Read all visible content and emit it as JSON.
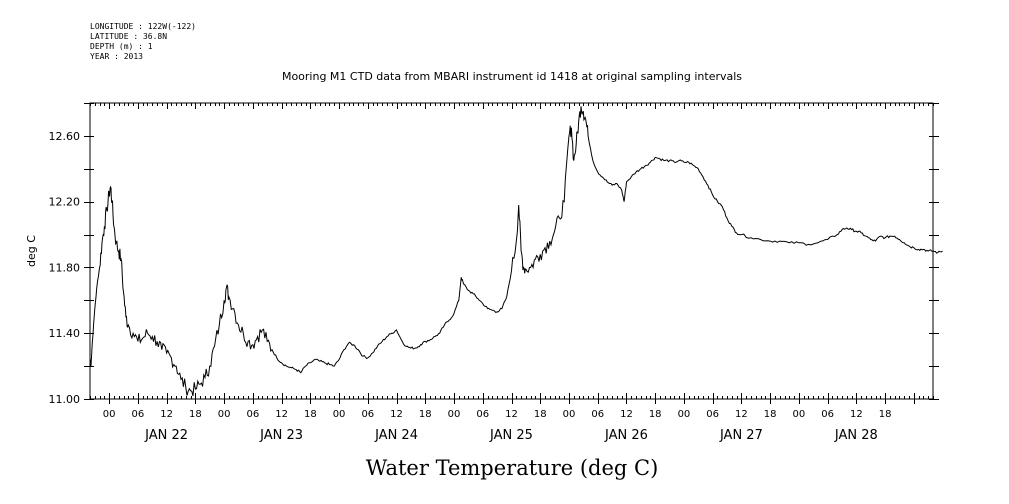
{
  "header": {
    "lines": [
      "LONGITUDE : 122W(-122)",
      "LATITUDE : 36.8N",
      "DEPTH (m) : 1",
      "YEAR : 2013"
    ]
  },
  "chart_data": {
    "type": "line",
    "title": "Mooring M1 CTD data from MBARI instrument id 1418 at original sampling intervals",
    "xlabel": "Water Temperature (deg C)",
    "ylabel": "deg C",
    "ylim": [
      11.0,
      12.8
    ],
    "yticks": [
      "11.00",
      "11.40",
      "11.80",
      "12.20",
      "12.60"
    ],
    "xlim_hours_from_jan22_00": [
      -4,
      20
    ],
    "hour_tick_labels": [
      "00",
      "06",
      "12",
      "18",
      "00",
      "06",
      "12",
      "18",
      "00",
      "06",
      "12",
      "18",
      "00",
      "06",
      "12",
      "18",
      "00",
      "06",
      "12",
      "18",
      "00",
      "06",
      "12",
      "18",
      "00",
      "06",
      "12",
      "18"
    ],
    "day_labels": [
      "JAN 22",
      "JAN 23",
      "JAN 24",
      "JAN 25",
      "JAN 26",
      "JAN 27",
      "JAN 28"
    ],
    "grid": false,
    "series": [
      {
        "values_note": "x = hours relative to JAN 22 00:00, y = deg C",
        "points": [
          [
            -4,
            11.25
          ],
          [
            -3.8,
            11.2
          ],
          [
            -3.5,
            11.35
          ],
          [
            -3,
            11.55
          ],
          [
            -2.5,
            11.7
          ],
          [
            -2,
            11.8
          ],
          [
            -1.5,
            11.95
          ],
          [
            -1,
            12.05
          ],
          [
            -0.5,
            12.15
          ],
          [
            0,
            12.25
          ],
          [
            0.3,
            12.29
          ],
          [
            0.6,
            12.2
          ],
          [
            1,
            12.05
          ],
          [
            1.5,
            11.95
          ],
          [
            2,
            11.9
          ],
          [
            2.5,
            11.85
          ],
          [
            3,
            11.65
          ],
          [
            3.5,
            11.5
          ],
          [
            4,
            11.45
          ],
          [
            5,
            11.4
          ],
          [
            6,
            11.35
          ],
          [
            7,
            11.37
          ],
          [
            8,
            11.4
          ],
          [
            9,
            11.38
          ],
          [
            10,
            11.35
          ],
          [
            11,
            11.3
          ],
          [
            12,
            11.28
          ],
          [
            13,
            11.25
          ],
          [
            14,
            11.2
          ],
          [
            15,
            11.12
          ],
          [
            16,
            11.07
          ],
          [
            17,
            11.05
          ],
          [
            18,
            11.06
          ],
          [
            19,
            11.09
          ],
          [
            20,
            11.13
          ],
          [
            21,
            11.2
          ],
          [
            22,
            11.32
          ],
          [
            23,
            11.45
          ],
          [
            24,
            11.6
          ],
          [
            24.5,
            11.68
          ],
          [
            25,
            11.62
          ],
          [
            26,
            11.55
          ],
          [
            27,
            11.45
          ],
          [
            28,
            11.4
          ],
          [
            29,
            11.35
          ],
          [
            30,
            11.33
          ],
          [
            31,
            11.38
          ],
          [
            32,
            11.42
          ],
          [
            33,
            11.35
          ],
          [
            34,
            11.3
          ],
          [
            35,
            11.25
          ],
          [
            36,
            11.22
          ],
          [
            37,
            11.2
          ],
          [
            38,
            11.19
          ],
          [
            39,
            11.18
          ],
          [
            40,
            11.16
          ],
          [
            41,
            11.2
          ],
          [
            42,
            11.22
          ],
          [
            43,
            11.24
          ],
          [
            44,
            11.23
          ],
          [
            45,
            11.22
          ],
          [
            46,
            11.21
          ],
          [
            47,
            11.2
          ],
          [
            48,
            11.24
          ],
          [
            49,
            11.3
          ],
          [
            50,
            11.34
          ],
          [
            51,
            11.33
          ],
          [
            52,
            11.3
          ],
          [
            53,
            11.26
          ],
          [
            54,
            11.25
          ],
          [
            55,
            11.28
          ],
          [
            56,
            11.32
          ],
          [
            57,
            11.35
          ],
          [
            58,
            11.38
          ],
          [
            59,
            11.4
          ],
          [
            60,
            11.42
          ],
          [
            61,
            11.36
          ],
          [
            62,
            11.32
          ],
          [
            63,
            11.31
          ],
          [
            64,
            11.31
          ],
          [
            65,
            11.33
          ],
          [
            66,
            11.35
          ],
          [
            67,
            11.36
          ],
          [
            68,
            11.38
          ],
          [
            69,
            11.4
          ],
          [
            70,
            11.45
          ],
          [
            71,
            11.48
          ],
          [
            72,
            11.52
          ],
          [
            73,
            11.6
          ],
          [
            73.5,
            11.74
          ],
          [
            74,
            11.7
          ],
          [
            75,
            11.66
          ],
          [
            76,
            11.64
          ],
          [
            77,
            11.61
          ],
          [
            78,
            11.58
          ],
          [
            79,
            11.55
          ],
          [
            80,
            11.54
          ],
          [
            81,
            11.53
          ],
          [
            82,
            11.55
          ],
          [
            83,
            11.62
          ],
          [
            84,
            11.78
          ],
          [
            85,
            11.96
          ],
          [
            85.5,
            12.18
          ],
          [
            86,
            11.9
          ],
          [
            86.5,
            11.8
          ],
          [
            87,
            11.79
          ],
          [
            88,
            11.8
          ],
          [
            89,
            11.85
          ],
          [
            90,
            11.88
          ],
          [
            91,
            11.92
          ],
          [
            92,
            11.96
          ],
          [
            93,
            12.02
          ],
          [
            94,
            12.1
          ],
          [
            95,
            12.2
          ],
          [
            96,
            12.6
          ],
          [
            96.5,
            12.65
          ],
          [
            97,
            12.45
          ],
          [
            97.5,
            12.55
          ],
          [
            98,
            12.68
          ],
          [
            98.5,
            12.78
          ],
          [
            99,
            12.75
          ],
          [
            99.5,
            12.7
          ],
          [
            100,
            12.6
          ],
          [
            101,
            12.45
          ],
          [
            102,
            12.38
          ],
          [
            103,
            12.35
          ],
          [
            104,
            12.32
          ],
          [
            105,
            12.3
          ],
          [
            106,
            12.31
          ],
          [
            107,
            12.27
          ],
          [
            107.5,
            12.2
          ],
          [
            108,
            12.32
          ],
          [
            109,
            12.35
          ],
          [
            110,
            12.38
          ],
          [
            111,
            12.4
          ],
          [
            112,
            12.42
          ],
          [
            113,
            12.44
          ],
          [
            114,
            12.47
          ],
          [
            115,
            12.46
          ],
          [
            116,
            12.45
          ],
          [
            117,
            12.45
          ],
          [
            118,
            12.44
          ],
          [
            119,
            12.45
          ],
          [
            120,
            12.44
          ],
          [
            121,
            12.44
          ],
          [
            122,
            12.42
          ],
          [
            123,
            12.4
          ],
          [
            124,
            12.35
          ],
          [
            125,
            12.3
          ],
          [
            126,
            12.24
          ],
          [
            127,
            12.2
          ],
          [
            128,
            12.17
          ],
          [
            129,
            12.1
          ],
          [
            130,
            12.05
          ],
          [
            131,
            12.01
          ],
          [
            132,
            12.0
          ],
          [
            134,
            11.98
          ],
          [
            136,
            11.97
          ],
          [
            138,
            11.96
          ],
          [
            140,
            11.96
          ],
          [
            142,
            11.95
          ],
          [
            144,
            11.95
          ],
          [
            146,
            11.94
          ],
          [
            148,
            11.95
          ],
          [
            150,
            11.97
          ],
          [
            152,
            12.0
          ],
          [
            153,
            12.03
          ],
          [
            154,
            12.04
          ],
          [
            155,
            12.03
          ],
          [
            156,
            12.02
          ],
          [
            157,
            12.01
          ],
          [
            158,
            11.99
          ],
          [
            159,
            11.97
          ],
          [
            160,
            11.96
          ],
          [
            161,
            11.99
          ],
          [
            162,
            11.98
          ],
          [
            163,
            11.99
          ],
          [
            164,
            11.99
          ],
          [
            165,
            11.97
          ],
          [
            166,
            11.95
          ],
          [
            167,
            11.93
          ],
          [
            168,
            11.92
          ],
          [
            169,
            11.91
          ],
          [
            170,
            11.91
          ],
          [
            171,
            11.9
          ],
          [
            172,
            11.9
          ],
          [
            173,
            11.89
          ],
          [
            174,
            11.9
          ]
        ]
      }
    ]
  }
}
